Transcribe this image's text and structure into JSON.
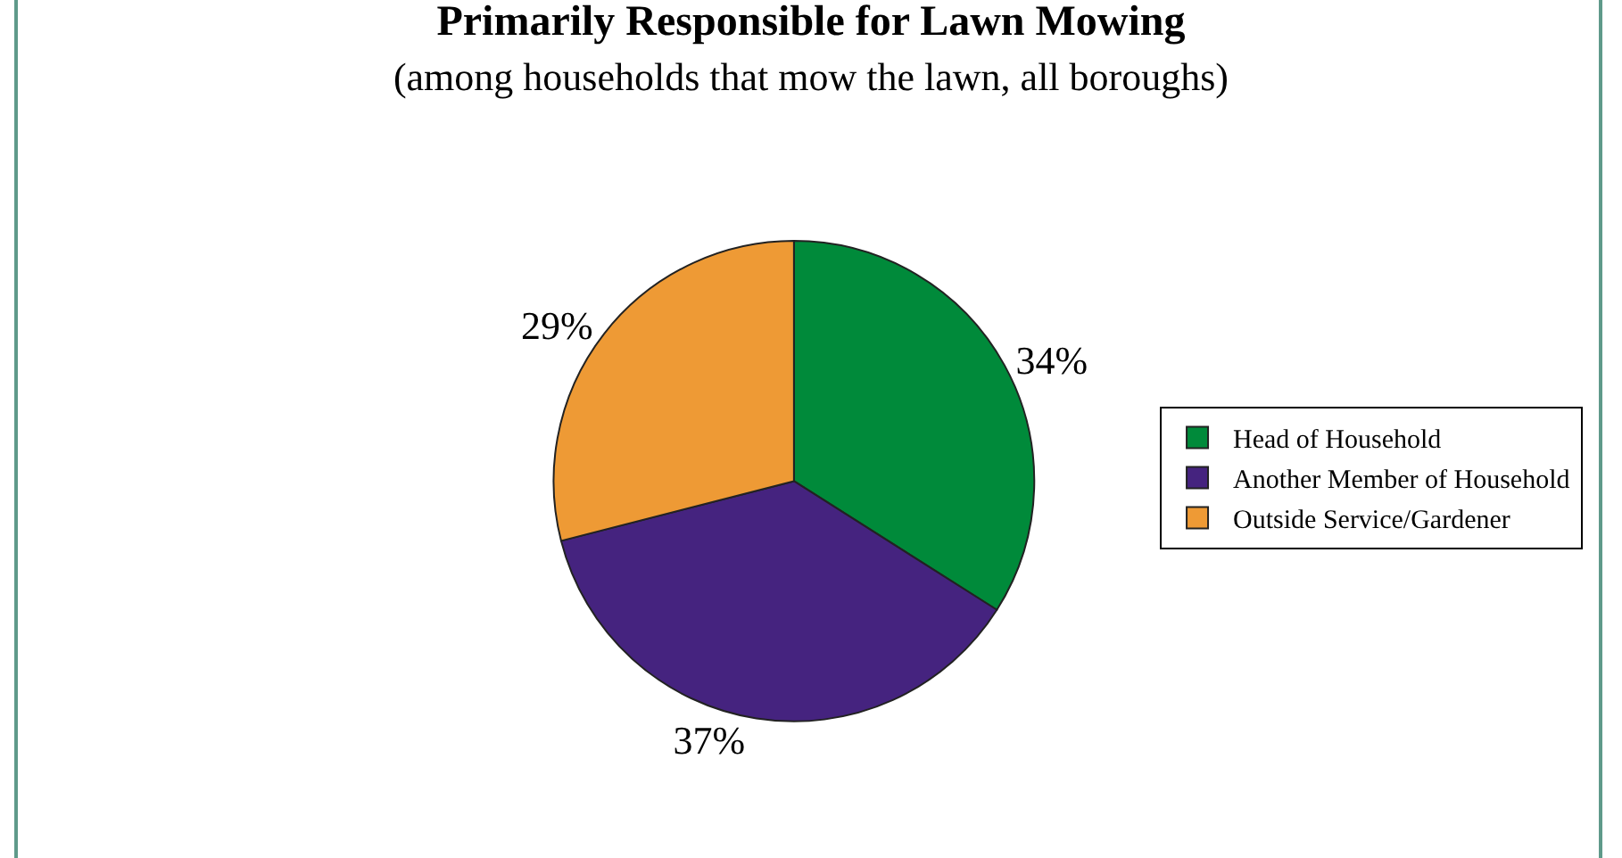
{
  "chart_data": {
    "type": "pie",
    "title": "Primarily Responsible for Lawn Mowing",
    "subtitle": "(among households that mow the lawn, all boroughs)",
    "categories": [
      "Head of Household",
      "Another Member of Household",
      "Outside Service/Gardener"
    ],
    "values": [
      34,
      37,
      29
    ],
    "value_labels": [
      "34%",
      "37%",
      "29%"
    ],
    "colors": [
      "#008a3a",
      "#45237f",
      "#ee9a35"
    ],
    "legend": "right"
  }
}
